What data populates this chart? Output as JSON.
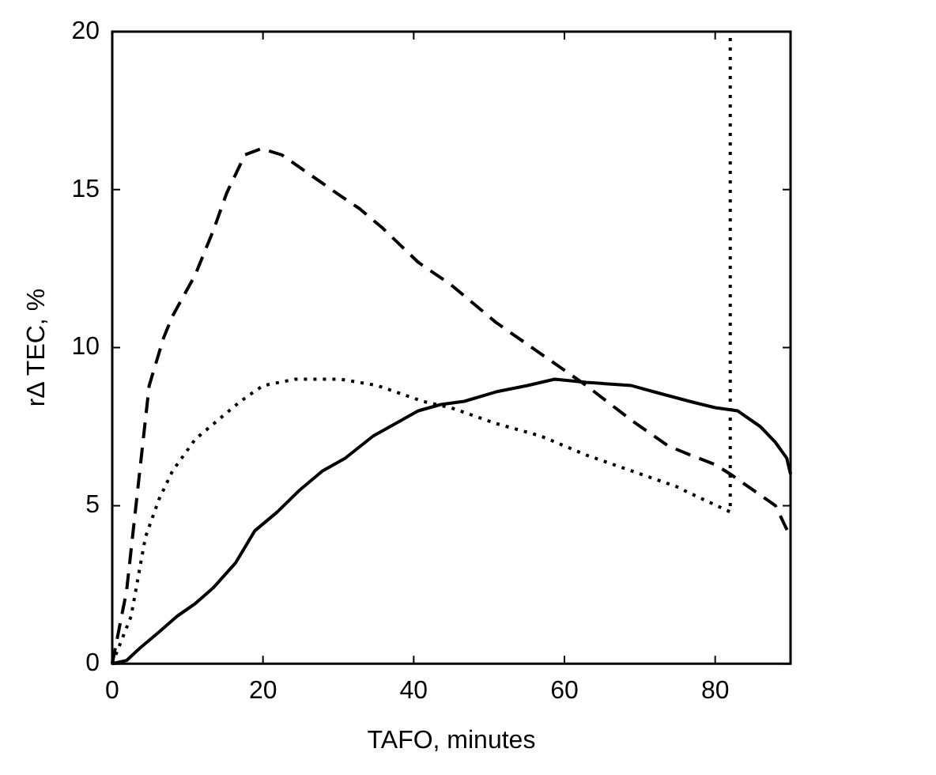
{
  "chart_data": {
    "type": "line",
    "xlabel": "TAFO, minutes",
    "ylabel": "rΔ TEC, %",
    "xlim": [
      0,
      90
    ],
    "ylim": [
      0,
      20
    ],
    "xticks": [
      0,
      20,
      40,
      60,
      80
    ],
    "yticks": [
      0,
      5,
      10,
      15,
      20
    ],
    "grid": false,
    "legend": false,
    "marker": "none",
    "series": [
      {
        "color": "#000000",
        "line_style": "dashed",
        "x": [
          0,
          1.9,
          3.7,
          4.9,
          6.8,
          8,
          11,
          13.4,
          15.2,
          17.6,
          19.8,
          22.5,
          26.1,
          29.1,
          32.8,
          35.8,
          40.6,
          44.9,
          50.9,
          56.9,
          62.9,
          68.9,
          73.7,
          76.7,
          80,
          82,
          85,
          88,
          90
        ],
        "values": [
          0,
          2.3,
          6.2,
          8.8,
          10.3,
          11,
          12.3,
          13.7,
          14.9,
          16.1,
          16.3,
          16.1,
          15.5,
          15,
          14.4,
          13.8,
          12.7,
          12,
          10.8,
          9.8,
          8.8,
          7.7,
          6.9,
          6.6,
          6.3,
          6,
          5.5,
          5,
          4
        ]
      },
      {
        "color": "#000000",
        "line_style": "dotted",
        "x": [
          0,
          2.5,
          4.4,
          6.2,
          8,
          11,
          14,
          17,
          20,
          24.3,
          30.3,
          35.2,
          41.2,
          44.9,
          50.9,
          56.9,
          62.9,
          68.9,
          74.9,
          76.6,
          82,
          82
        ],
        "values": [
          0,
          1.5,
          4,
          5.2,
          6.1,
          7.1,
          7.7,
          8.3,
          8.8,
          9,
          9,
          8.8,
          8.3,
          8.1,
          7.6,
          7.2,
          6.6,
          6.1,
          5.6,
          5.4,
          4.8,
          20
        ]
      },
      {
        "color": "#000000",
        "line_style": "solid",
        "x": [
          0,
          1.9,
          3.7,
          6.2,
          8.6,
          11,
          13.4,
          16.4,
          18.9,
          21.9,
          24.9,
          27.9,
          30.9,
          34.6,
          37.6,
          40.6,
          43.6,
          46.7,
          50.9,
          55.1,
          58.7,
          62.9,
          68.9,
          71.9,
          76.6,
          80,
          83,
          86,
          88,
          89.5,
          90
        ],
        "values": [
          0,
          0.1,
          0.5,
          1,
          1.5,
          1.9,
          2.4,
          3.2,
          4.2,
          4.8,
          5.5,
          6.1,
          6.5,
          7.2,
          7.6,
          8,
          8.2,
          8.3,
          8.6,
          8.8,
          9,
          8.9,
          8.8,
          8.6,
          8.3,
          8.1,
          8,
          7.5,
          7,
          6.5,
          6
        ]
      }
    ]
  }
}
